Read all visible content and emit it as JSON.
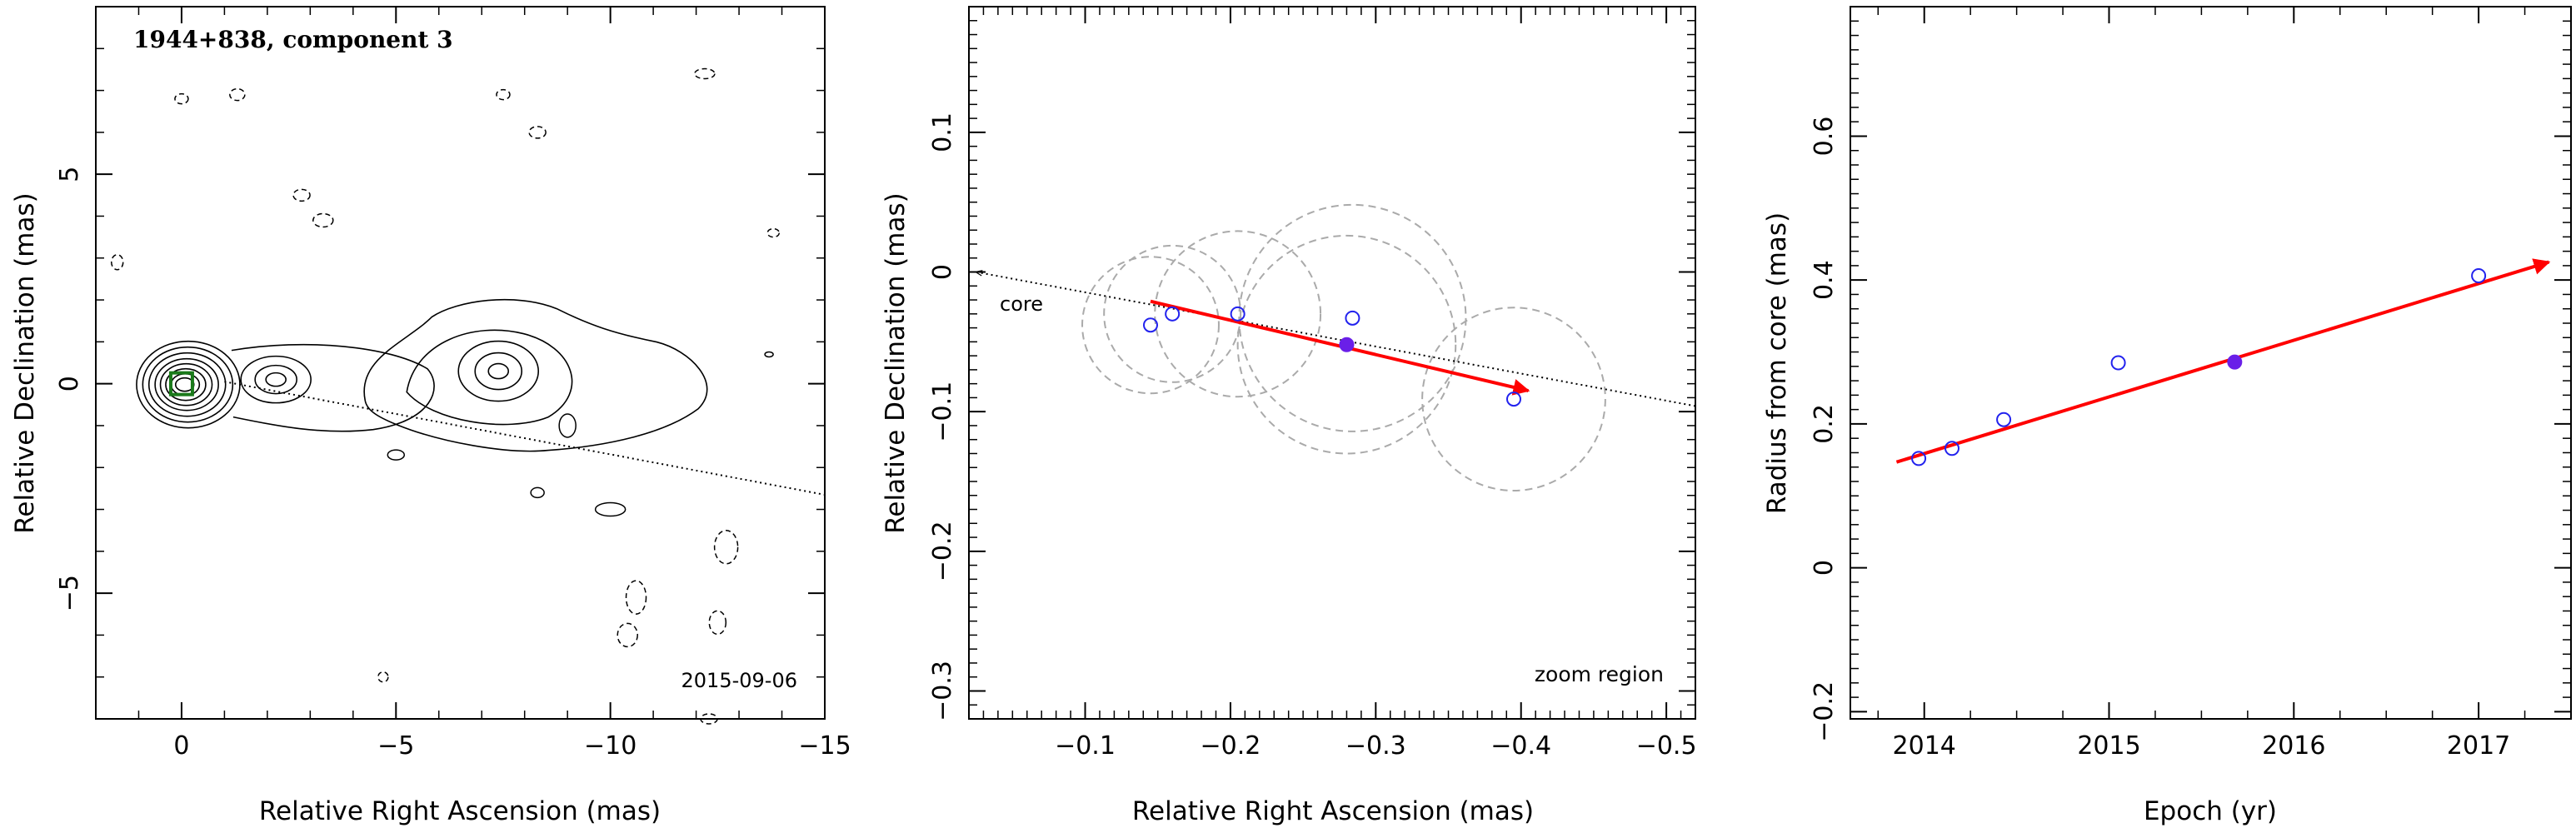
{
  "chart_data": [
    {
      "type": "contour",
      "title": "1944+838, component 3",
      "annotation": "2015-09-06",
      "xlabel": "Relative Right Ascension (mas)",
      "ylabel": "Relative Declination (mas)",
      "xlim": [
        2,
        -15
      ],
      "ylim": [
        -8,
        9
      ],
      "x_ticks": [
        0,
        -5,
        -10,
        -15
      ],
      "y_ticks": [
        -5,
        0,
        5
      ],
      "component_position": [
        0,
        0
      ],
      "trajectory_line": [
        [
          -1,
          0.05
        ],
        [
          -15,
          -2.65
        ]
      ],
      "components": [
        {
          "x": 0.2,
          "y": 0.0,
          "levels": 8
        },
        {
          "x": -2.2,
          "y": 0.1,
          "levels": 3
        },
        {
          "x": -7.0,
          "y": 0.2,
          "levels": 4
        }
      ]
    },
    {
      "type": "scatter",
      "xlabel": "Relative Right Ascension (mas)",
      "ylabel": "Relative Declination (mas)",
      "xlim": [
        -0.02,
        -0.52
      ],
      "ylim": [
        -0.32,
        0.19
      ],
      "x_ticks": [
        -0.1,
        -0.2,
        -0.3,
        -0.4,
        -0.5
      ],
      "y_ticks": [
        -0.3,
        -0.2,
        -0.1,
        0,
        0.1
      ],
      "core_label": "core",
      "zoom_label": "zoom region",
      "points": [
        {
          "x": -0.145,
          "y": -0.038,
          "filled": false
        },
        {
          "x": -0.16,
          "y": -0.03,
          "filled": false
        },
        {
          "x": -0.205,
          "y": -0.03,
          "filled": false
        },
        {
          "x": -0.284,
          "y": -0.033,
          "filled": false
        },
        {
          "x": -0.28,
          "y": -0.052,
          "filled": true
        },
        {
          "x": -0.395,
          "y": -0.091,
          "filled": false
        }
      ],
      "beam_circles": [
        {
          "x": -0.145,
          "y": -0.038,
          "r": 0.047
        },
        {
          "x": -0.16,
          "y": -0.03,
          "r": 0.047
        },
        {
          "x": -0.205,
          "y": -0.03,
          "r": 0.057
        },
        {
          "x": -0.284,
          "y": -0.033,
          "r": 0.078
        },
        {
          "x": -0.28,
          "y": -0.052,
          "r": 0.075
        },
        {
          "x": -0.395,
          "y": -0.091,
          "r": 0.063
        }
      ],
      "fit_arrow": {
        "from": [
          -0.145,
          -0.021
        ],
        "to": [
          -0.405,
          -0.085
        ]
      },
      "trajectory_line": {
        "from": [
          -0.025,
          0.0
        ],
        "to": [
          -0.52,
          -0.096
        ]
      }
    },
    {
      "type": "scatter",
      "xlabel": "Epoch (yr)",
      "ylabel": "Radius from core (mas)",
      "xlim": [
        2013.6,
        2017.5
      ],
      "ylim": [
        -0.21,
        0.78
      ],
      "x_ticks": [
        2014,
        2015,
        2016,
        2017
      ],
      "y_ticks": [
        -0.2,
        0,
        0.2,
        0.4,
        0.6
      ],
      "points": [
        {
          "x": 2013.97,
          "y": 0.152,
          "filled": false
        },
        {
          "x": 2014.15,
          "y": 0.166,
          "filled": false
        },
        {
          "x": 2014.43,
          "y": 0.206,
          "filled": false
        },
        {
          "x": 2015.05,
          "y": 0.285,
          "filled": false
        },
        {
          "x": 2015.68,
          "y": 0.286,
          "filled": true
        },
        {
          "x": 2017.0,
          "y": 0.406,
          "filled": false
        }
      ],
      "fit_arrow": {
        "from": [
          2013.85,
          0.147
        ],
        "to": [
          2017.38,
          0.425
        ]
      }
    }
  ]
}
